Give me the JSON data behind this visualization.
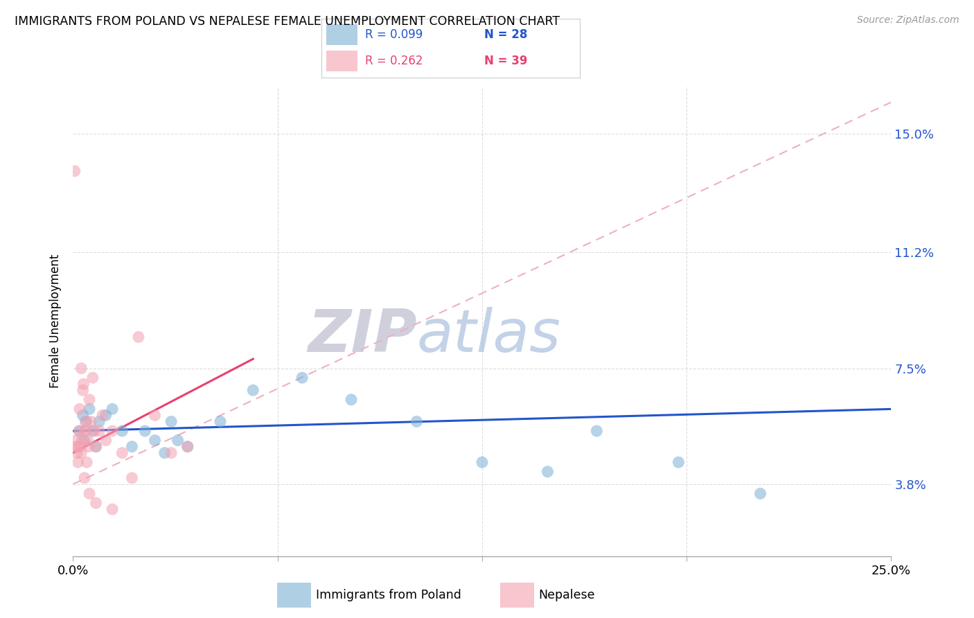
{
  "title": "IMMIGRANTS FROM POLAND VS NEPALESE FEMALE UNEMPLOYMENT CORRELATION CHART",
  "source": "Source: ZipAtlas.com",
  "ylabel": "Female Unemployment",
  "y_tick_values": [
    3.8,
    7.5,
    11.2,
    15.0
  ],
  "y_tick_labels": [
    "3.8%",
    "7.5%",
    "11.2%",
    "15.0%"
  ],
  "xlim": [
    0.0,
    25.0
  ],
  "ylim": [
    1.5,
    16.5
  ],
  "legend_blue_r": "R = 0.099",
  "legend_blue_n": "N = 28",
  "legend_pink_r": "R = 0.262",
  "legend_pink_n": "N = 39",
  "legend_label_blue": "Immigrants from Poland",
  "legend_label_pink": "Nepalese",
  "blue_color": "#7BAFD4",
  "pink_color": "#F4A0B0",
  "trend_blue_color": "#2255CC",
  "trend_pink_color": "#E84070",
  "trend_dashed_color": "#EEB0C0",
  "blue_x": [
    0.2,
    0.3,
    0.4,
    0.5,
    0.6,
    0.8,
    1.0,
    1.2,
    1.5,
    1.8,
    2.2,
    2.5,
    2.8,
    3.0,
    3.2,
    3.5,
    4.5,
    5.5,
    7.0,
    8.5,
    10.5,
    12.5,
    14.5,
    16.0,
    18.5,
    21.0,
    0.35,
    0.7
  ],
  "blue_y": [
    5.5,
    6.0,
    5.8,
    6.2,
    5.5,
    5.8,
    6.0,
    6.2,
    5.5,
    5.0,
    5.5,
    5.2,
    4.8,
    5.8,
    5.2,
    5.0,
    5.8,
    6.8,
    7.2,
    6.5,
    5.8,
    4.5,
    4.2,
    5.5,
    4.5,
    3.5,
    5.2,
    5.0
  ],
  "pink_x": [
    0.05,
    0.1,
    0.12,
    0.15,
    0.18,
    0.2,
    0.22,
    0.25,
    0.28,
    0.3,
    0.32,
    0.35,
    0.38,
    0.4,
    0.42,
    0.45,
    0.48,
    0.5,
    0.55,
    0.6,
    0.65,
    0.7,
    0.8,
    0.9,
    1.0,
    1.2,
    1.5,
    1.8,
    2.0,
    2.5,
    3.0,
    3.5,
    0.1,
    0.15,
    0.25,
    0.35,
    0.5,
    0.7,
    1.2
  ],
  "pink_y": [
    13.8,
    5.2,
    4.8,
    5.0,
    5.5,
    6.2,
    5.0,
    7.5,
    5.2,
    6.8,
    7.0,
    5.5,
    5.8,
    5.5,
    4.5,
    5.2,
    5.0,
    6.5,
    5.8,
    7.2,
    5.5,
    5.0,
    5.5,
    6.0,
    5.2,
    5.5,
    4.8,
    4.0,
    8.5,
    6.0,
    4.8,
    5.0,
    5.0,
    4.5,
    4.8,
    4.0,
    3.5,
    3.2,
    3.0
  ],
  "blue_trend_x0": 0.0,
  "blue_trend_y0": 5.5,
  "blue_trend_x1": 25.0,
  "blue_trend_y1": 6.2,
  "pink_trend_x0": 0.0,
  "pink_trend_y0": 4.8,
  "pink_trend_x1": 5.5,
  "pink_trend_y1": 7.8,
  "dash_trend_x0": 0.0,
  "dash_trend_y0": 3.8,
  "dash_trend_x1": 25.0,
  "dash_trend_y1": 16.0
}
